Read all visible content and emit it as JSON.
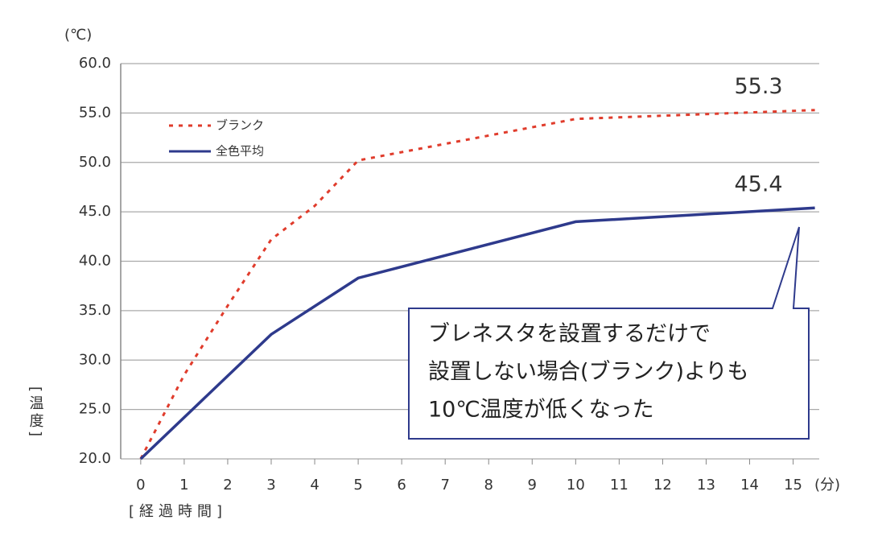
{
  "chart_data": {
    "type": "line",
    "y_unit": "(℃)",
    "x_unit": "(分)",
    "x_label": "[経過時間]",
    "y_label": "[温度]",
    "xlim": [
      -0.46,
      15.6
    ],
    "ylim": [
      20,
      60
    ],
    "xticks": [
      0,
      1,
      2,
      3,
      4,
      5,
      6,
      7,
      8,
      9,
      10,
      11,
      12,
      13,
      14,
      15
    ],
    "yticks": [
      {
        "value": 20,
        "label": "20.0"
      },
      {
        "value": 25,
        "label": "25.0"
      },
      {
        "value": 30,
        "label": "30.0"
      },
      {
        "value": 35,
        "label": "35.0"
      },
      {
        "value": 40,
        "label": "40.0"
      },
      {
        "value": 45,
        "label": "45.0"
      },
      {
        "value": 50,
        "label": "50.0"
      },
      {
        "value": 55,
        "label": "55.0"
      },
      {
        "value": 60,
        "label": "60.0"
      }
    ],
    "grid": true,
    "legend": "upper left",
    "series": [
      {
        "name": "ブランク",
        "color": "#e03c2c",
        "style": "dotted",
        "x": [
          0,
          1,
          2,
          3,
          4,
          5,
          10,
          15.5
        ],
        "values": [
          20,
          28.5,
          35.5,
          42.2,
          45.6,
          50.2,
          54.4,
          55.3
        ]
      },
      {
        "name": "全色平均",
        "color": "#2e3a8c",
        "style": "solid",
        "x": [
          0,
          3,
          5,
          10,
          15.5
        ],
        "values": [
          20,
          32.6,
          38.3,
          44,
          45.4
        ]
      }
    ],
    "callout": [
      "ブレネスタを設置するだけで",
      "設置しない場合(ブランク)よりも",
      "10℃温度が低くなった"
    ]
  }
}
